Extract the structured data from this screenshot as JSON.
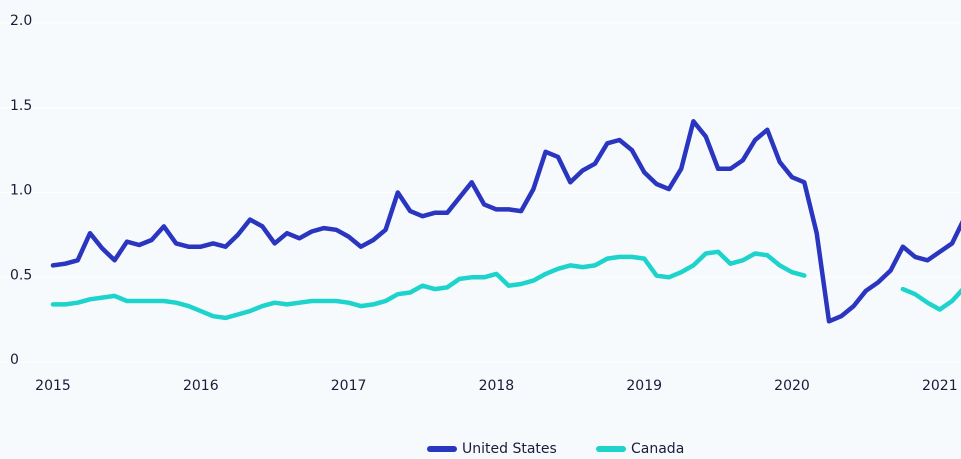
{
  "chart_data": {
    "type": "line",
    "x": [
      2015,
      2015.083,
      2015.167,
      2015.25,
      2015.333,
      2015.417,
      2015.5,
      2015.583,
      2015.667,
      2015.75,
      2015.833,
      2015.917,
      2016,
      2016.083,
      2016.167,
      2016.25,
      2016.333,
      2016.417,
      2016.5,
      2016.583,
      2016.667,
      2016.75,
      2016.833,
      2016.917,
      2017,
      2017.083,
      2017.167,
      2017.25,
      2017.333,
      2017.417,
      2017.5,
      2017.583,
      2017.667,
      2017.75,
      2017.833,
      2017.917,
      2018,
      2018.083,
      2018.167,
      2018.25,
      2018.333,
      2018.417,
      2018.5,
      2018.583,
      2018.667,
      2018.75,
      2018.833,
      2018.917,
      2019,
      2019.083,
      2019.167,
      2019.25,
      2019.333,
      2019.417,
      2019.5,
      2019.583,
      2019.667,
      2019.75,
      2019.833,
      2019.917,
      2020,
      2020.083,
      2020.167,
      2020.25,
      2020.333,
      2020.417,
      2020.5,
      2020.583,
      2020.667,
      2020.75,
      2020.833,
      2020.917,
      2021,
      2021.083,
      2021.167
    ],
    "series": [
      {
        "name": "United States",
        "color": "#2a35c0",
        "values": [
          0.57,
          0.58,
          0.6,
          0.76,
          0.67,
          0.6,
          0.71,
          0.69,
          0.72,
          0.8,
          0.7,
          0.68,
          0.68,
          0.7,
          0.68,
          0.75,
          0.84,
          0.8,
          0.7,
          0.76,
          0.73,
          0.77,
          0.79,
          0.78,
          0.74,
          0.68,
          0.72,
          0.78,
          1.0,
          0.89,
          0.86,
          0.88,
          0.88,
          0.97,
          1.06,
          0.93,
          0.9,
          0.9,
          0.89,
          1.02,
          1.24,
          1.21,
          1.06,
          1.13,
          1.17,
          1.29,
          1.31,
          1.25,
          1.12,
          1.05,
          1.02,
          1.14,
          1.42,
          1.33,
          1.14,
          1.14,
          1.19,
          1.31,
          1.37,
          1.18,
          1.09,
          1.06,
          0.76,
          0.24,
          0.27,
          0.33,
          0.42,
          0.47,
          0.54,
          0.68,
          0.62,
          0.6,
          0.65,
          0.7,
          0.85
        ]
      },
      {
        "name": "Canada",
        "color": "#1ed3cc",
        "values": [
          0.34,
          0.34,
          0.35,
          0.37,
          0.38,
          0.39,
          0.36,
          0.36,
          0.36,
          0.36,
          0.35,
          0.33,
          0.3,
          0.27,
          0.26,
          0.28,
          0.3,
          0.33,
          0.35,
          0.34,
          0.35,
          0.36,
          0.36,
          0.36,
          0.35,
          0.33,
          0.34,
          0.36,
          0.4,
          0.41,
          0.45,
          0.43,
          0.44,
          0.49,
          0.5,
          0.5,
          0.52,
          0.45,
          0.46,
          0.48,
          0.52,
          0.55,
          0.57,
          0.56,
          0.57,
          0.61,
          0.62,
          0.62,
          0.61,
          0.51,
          0.5,
          0.53,
          0.57,
          0.64,
          0.65,
          0.58,
          0.6,
          0.64,
          0.63,
          0.57,
          0.53,
          0.51,
          null,
          null,
          null,
          null,
          null,
          null,
          null,
          0.43,
          0.4,
          0.35,
          0.31,
          0.36,
          0.44
        ]
      }
    ],
    "xlim": [
      2015,
      2021.14
    ],
    "xticks": [
      2015,
      2016,
      2017,
      2018,
      2019,
      2020,
      2021
    ],
    "ylim": [
      0,
      2
    ],
    "yticks": [
      0,
      {
        "value": 0.5,
        "label": "0.5"
      },
      {
        "value": 1,
        "label": "1.0"
      },
      {
        "value": 1.5,
        "label": "1.5"
      },
      {
        "value": 2,
        "label": "2.0"
      }
    ],
    "grid": true,
    "legend": "bottom"
  }
}
